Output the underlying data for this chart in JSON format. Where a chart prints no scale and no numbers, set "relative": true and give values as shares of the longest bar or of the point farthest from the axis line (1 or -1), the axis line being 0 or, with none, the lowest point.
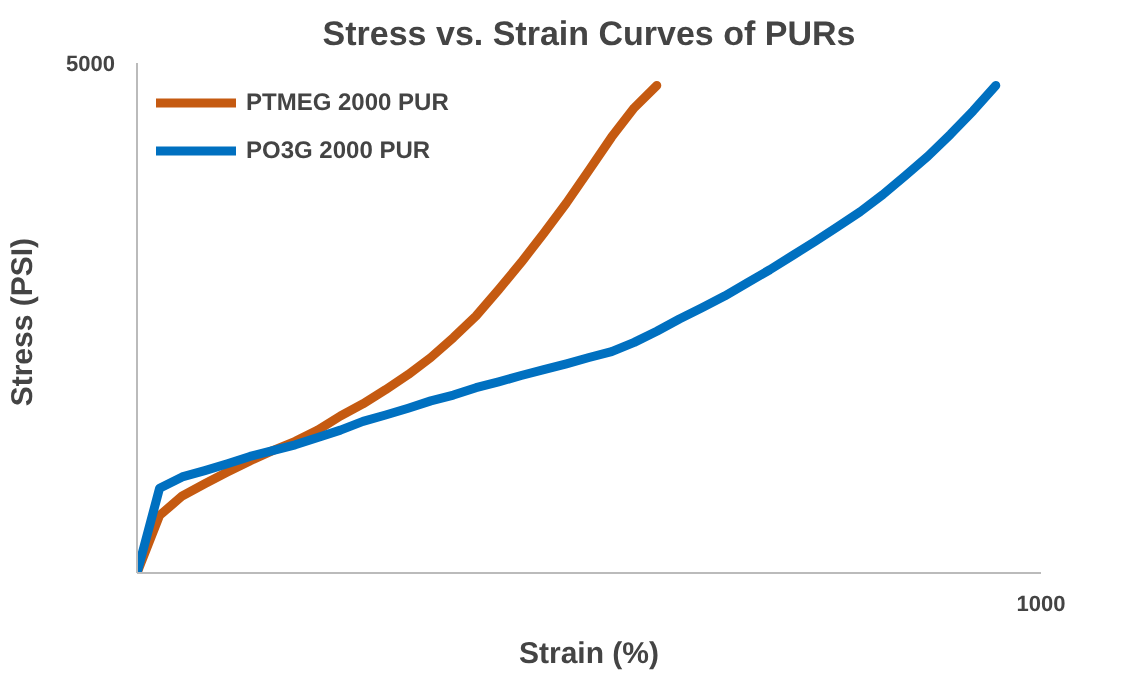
{
  "chart_data": {
    "type": "line",
    "title": "Stress vs. Strain Curves of PURs",
    "xlabel": "Strain (%)",
    "ylabel": "Stress  (PSI)",
    "relative": true,
    "annotations": [
      "5000",
      "1000"
    ],
    "legend": "top left",
    "line_style": "solid",
    "categories": [
      null,
      null,
      null,
      null,
      null,
      null,
      null,
      null,
      null,
      null,
      null,
      null,
      null,
      null,
      null,
      null,
      null,
      null,
      null,
      null,
      null,
      null,
      null,
      null,
      null,
      null,
      null,
      null,
      null,
      null,
      null,
      null,
      null,
      null,
      null,
      null,
      null,
      null,
      null,
      null,
      null
    ],
    "series": [
      {
        "name": "PTMEG 2000 PUR",
        "color": "#c55a11",
        "values": [
          0,
          0.118,
          0.158,
          0.183,
          0.207,
          0.23,
          0.251,
          0.27,
          0.293,
          0.322,
          0.347,
          0.376,
          0.407,
          0.442,
          0.483,
          0.527,
          0.581,
          0.637,
          0.697,
          0.759,
          0.826,
          0.894,
          0.954,
          1,
          null,
          null,
          null,
          null,
          null,
          null,
          null,
          null,
          null,
          null,
          null,
          null,
          null,
          null,
          null,
          null,
          null
        ]
      },
      {
        "name": "PO3G 2000 PUR",
        "color": "#0070c0",
        "values": [
          0,
          0.174,
          0.197,
          0.21,
          0.224,
          0.239,
          0.251,
          0.263,
          0.278,
          0.293,
          0.311,
          0.324,
          0.338,
          0.353,
          0.365,
          0.38,
          0.392,
          0.405,
          0.417,
          0.429,
          0.442,
          0.454,
          0.473,
          0.496,
          0.521,
          0.544,
          0.568,
          0.595,
          0.622,
          0.651,
          0.68,
          0.71,
          0.741,
          0.776,
          0.815,
          0.855,
          0.9,
          0.948,
          1,
          null,
          null
        ]
      }
    ]
  }
}
